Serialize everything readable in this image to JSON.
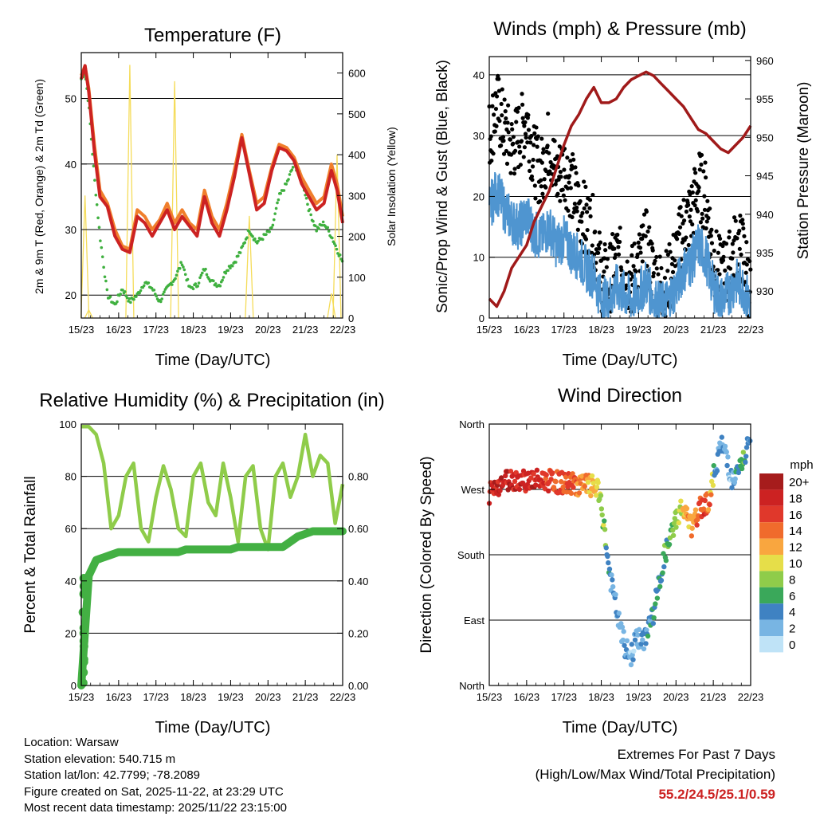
{
  "colors": {
    "temp_2m": "#cc2222",
    "temp_9m": "#f07f2c",
    "dewpoint": "#3fb03f",
    "solar": "#f5dc5a",
    "gust": "#000000",
    "wind": "#4f95d0",
    "pressure": "#a01a1a",
    "rh": "#8fcc4a",
    "precip": "#43b043",
    "extremes": "#cc2222"
  },
  "x_ticks": [
    "15/23",
    "16/23",
    "17/23",
    "18/23",
    "19/23",
    "20/23",
    "21/23",
    "22/23"
  ],
  "chart_data": [
    {
      "id": "temperature",
      "type": "line",
      "title": "Temperature (F)",
      "xlabel": "Time (Day/UTC)",
      "ylabel": "2m & 9m T (Red, Orange) & 2m Td (Green)",
      "ylabel_right": "Solar Insolation (Yellow)",
      "ylim": [
        16.5,
        57
      ],
      "ylim_right": [
        0,
        650
      ],
      "y_ticks": [
        "20",
        "30",
        "40",
        "50"
      ],
      "y_ticks_right": [
        "0",
        "100",
        "200",
        "300",
        "400",
        "500",
        "600"
      ],
      "x": [
        0,
        0.1,
        0.2,
        0.35,
        0.5,
        0.7,
        0.9,
        1.1,
        1.3,
        1.5,
        1.7,
        1.9,
        2.1,
        2.3,
        2.5,
        2.7,
        2.9,
        3.1,
        3.3,
        3.5,
        3.7,
        3.9,
        4.1,
        4.3,
        4.5,
        4.7,
        4.9,
        5.1,
        5.3,
        5.5,
        5.7,
        5.9,
        6.1,
        6.3,
        6.5,
        6.7,
        6.85,
        7.0
      ],
      "series": [
        {
          "name": "2m T",
          "values": [
            53,
            55,
            51,
            42,
            35,
            33.5,
            29,
            27,
            26.5,
            32,
            31,
            29,
            31,
            33,
            30,
            32,
            30.5,
            29,
            35,
            31,
            29,
            33,
            38,
            44,
            38.5,
            33,
            34,
            39,
            42.5,
            42,
            40.5,
            37,
            35,
            33,
            34,
            39,
            36,
            31
          ]
        },
        {
          "name": "9m T",
          "values": [
            53.5,
            55,
            51.5,
            43,
            36,
            34,
            30,
            27.5,
            27,
            33,
            32,
            30,
            31.5,
            34,
            31,
            33,
            31,
            30,
            36,
            32,
            30,
            34,
            39,
            44.5,
            39,
            34,
            35,
            39.5,
            43,
            42.5,
            41,
            38,
            36,
            34,
            35,
            40,
            37,
            32
          ]
        },
        {
          "name": "2m Td",
          "values": [
            53,
            54,
            49,
            38,
            29,
            20,
            18.5,
            21,
            19,
            20,
            22,
            21,
            19,
            21,
            22.5,
            25,
            21,
            21.5,
            24,
            22,
            21.5,
            24,
            25,
            27,
            30,
            28,
            29,
            30,
            35,
            37,
            40,
            38,
            33,
            30,
            31,
            29,
            27,
            25
          ]
        },
        {
          "name": "Solar",
          "values": [
            0,
            300,
            20,
            0,
            0,
            0,
            0,
            0,
            620,
            0,
            0,
            0,
            0,
            0,
            580,
            0,
            0,
            0,
            0,
            0,
            0,
            0,
            0,
            0,
            250,
            0,
            0,
            0,
            0,
            0,
            0,
            0,
            0,
            0,
            0,
            60,
            400,
            0
          ]
        }
      ]
    },
    {
      "id": "winds",
      "type": "scatter",
      "title": "Winds (mph) & Pressure (mb)",
      "xlabel": "Time (Day/UTC)",
      "ylabel": "Sonic/Prop Wind & Gust (Blue, Black)",
      "ylabel_right": "Station Pressure (Maroon)",
      "ylim": [
        0,
        43
      ],
      "ylim_right": [
        926.5,
        960.5
      ],
      "y_ticks": [
        "0",
        "10",
        "20",
        "30",
        "40"
      ],
      "y_ticks_right": [
        "930",
        "935",
        "940",
        "945",
        "950",
        "955",
        "960"
      ],
      "x": [
        0,
        0.2,
        0.4,
        0.6,
        0.8,
        1.0,
        1.2,
        1.4,
        1.6,
        1.8,
        2.0,
        2.2,
        2.4,
        2.6,
        2.8,
        3.0,
        3.2,
        3.4,
        3.6,
        3.8,
        4.0,
        4.2,
        4.4,
        4.6,
        4.8,
        5.0,
        5.2,
        5.4,
        5.6,
        5.8,
        6.0,
        6.2,
        6.4,
        6.6,
        6.8,
        7.0
      ],
      "series": [
        {
          "name": "Gust",
          "values": [
            30,
            35,
            31,
            28,
            30,
            33,
            26,
            24,
            29,
            23,
            25,
            22,
            18,
            16,
            14,
            7,
            6,
            10,
            8,
            6,
            9,
            12,
            7,
            5,
            6,
            10,
            15,
            17,
            22,
            20,
            10,
            7,
            8,
            12,
            11,
            4
          ]
        },
        {
          "name": "Wind",
          "values": [
            18,
            21,
            18,
            16,
            15,
            17,
            14,
            13,
            15,
            12,
            13,
            11,
            10,
            8,
            7,
            3,
            3,
            5,
            4,
            3,
            4,
            6,
            3,
            2,
            3,
            5,
            8,
            9,
            12,
            10,
            5,
            3,
            4,
            6,
            5,
            2
          ]
        },
        {
          "name": "Pressure",
          "values": [
            929,
            928,
            930,
            933,
            934.5,
            936,
            939,
            941,
            943,
            946,
            949,
            951.5,
            953,
            955,
            956.5,
            954.5,
            954.5,
            955,
            956.5,
            957.5,
            958,
            958.5,
            958,
            957,
            956,
            955,
            954,
            952.5,
            951,
            950.5,
            949.5,
            948.5,
            948,
            949,
            950,
            951.5
          ]
        }
      ]
    },
    {
      "id": "humidity",
      "type": "line",
      "title": "Relative Humidity (%) & Precipitation (in)",
      "xlabel": "Time (Day/UTC)",
      "ylabel": "Percent & Total Rainfall",
      "ylim": [
        0,
        100
      ],
      "ylim_right": [
        0,
        1
      ],
      "y_ticks": [
        "0",
        "20",
        "40",
        "60",
        "80",
        "100"
      ],
      "y_ticks_right": [
        "0.00",
        "0.20",
        "0.40",
        "0.60",
        "0.80"
      ],
      "x": [
        0,
        0.2,
        0.4,
        0.6,
        0.8,
        1.0,
        1.2,
        1.4,
        1.6,
        1.8,
        2.0,
        2.2,
        2.4,
        2.6,
        2.8,
        3.0,
        3.2,
        3.4,
        3.6,
        3.8,
        4.0,
        4.2,
        4.4,
        4.6,
        4.8,
        5.0,
        5.2,
        5.4,
        5.6,
        5.8,
        6.0,
        6.2,
        6.4,
        6.6,
        6.8,
        7.0
      ],
      "series": [
        {
          "name": "RH",
          "values": [
            99,
            99,
            96,
            85,
            60,
            65,
            80,
            85,
            60,
            55,
            72,
            84,
            75,
            60,
            57,
            80,
            85,
            70,
            65,
            85,
            72,
            55,
            80,
            84,
            60,
            52,
            80,
            85,
            72,
            80,
            96,
            80,
            88,
            85,
            62,
            77
          ]
        },
        {
          "name": "Precip",
          "values": [
            0,
            0.42,
            0.48,
            0.49,
            0.5,
            0.51,
            0.51,
            0.51,
            0.51,
            0.51,
            0.51,
            0.51,
            0.51,
            0.51,
            0.52,
            0.52,
            0.52,
            0.52,
            0.52,
            0.52,
            0.52,
            0.53,
            0.53,
            0.53,
            0.53,
            0.53,
            0.53,
            0.53,
            0.55,
            0.57,
            0.58,
            0.59,
            0.59,
            0.59,
            0.59,
            0.59
          ]
        }
      ]
    },
    {
      "id": "direction",
      "type": "scatter",
      "title": "Wind Direction",
      "xlabel": "Time (Day/UTC)",
      "ylabel": "Direction (Colored By Speed)",
      "ylim": [
        0,
        360
      ],
      "y_ticks": [
        "North",
        "East",
        "South",
        "West",
        "North"
      ],
      "x": [
        0,
        0.3,
        0.6,
        0.9,
        1.2,
        1.5,
        1.8,
        2.1,
        2.4,
        2.7,
        2.9,
        3.05,
        3.2,
        3.35,
        3.5,
        3.65,
        3.8,
        3.95,
        4.1,
        4.25,
        4.4,
        4.55,
        4.7,
        4.85,
        5.0,
        5.15,
        5.3,
        5.45,
        5.6,
        5.75,
        5.9,
        6.05,
        6.2,
        6.35,
        6.5,
        6.65,
        6.8,
        6.95
      ],
      "series": [
        {
          "name": "Direction",
          "values": [
            265,
            280,
            285,
            283,
            282,
            283,
            280,
            278,
            277,
            275,
            270,
            230,
            160,
            120,
            80,
            50,
            40,
            70,
            55,
            80,
            100,
            140,
            180,
            200,
            230,
            245,
            230,
            215,
            240,
            250,
            255,
            300,
            330,
            320,
            280,
            290,
            310,
            330
          ]
        },
        {
          "name": "Speed",
          "values": [
            18,
            19,
            18,
            17,
            18,
            16,
            15,
            15,
            14,
            12,
            10,
            8,
            4,
            3,
            3,
            2,
            2,
            3,
            3,
            4,
            4,
            5,
            6,
            7,
            8,
            10,
            12,
            13,
            14,
            16,
            14,
            4,
            3,
            3,
            2,
            5,
            6,
            4
          ]
        }
      ],
      "legend": {
        "title": "mph",
        "labels": [
          "20+",
          "18",
          "16",
          "14",
          "12",
          "10",
          "8",
          "6",
          "4",
          "2",
          "0"
        ],
        "placement": "right"
      }
    }
  ],
  "info": {
    "location": "Location: Warsaw",
    "elevation": "Station elevation: 540.715 m",
    "latlon": "Station lat/lon: 42.7799; -78.2089",
    "created": "Figure created on Sat, 2025-11-22, at 23:29 UTC",
    "recent": "Most recent data timestamp: 2025/11/22 23:15:00"
  },
  "extremes": {
    "title": "Extremes For Past 7 Days",
    "subtitle": "(High/Low/Max Wind/Total Precipitation)",
    "values": "55.2/24.5/25.1/0.59"
  }
}
